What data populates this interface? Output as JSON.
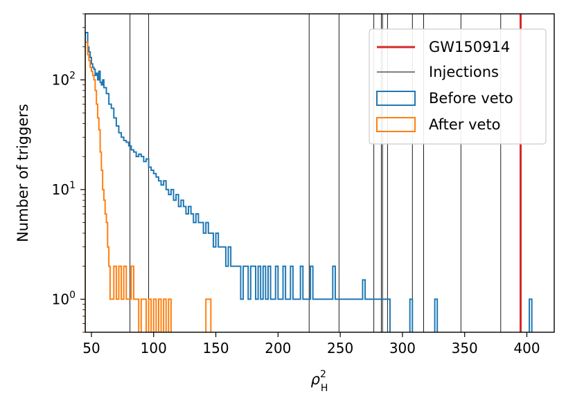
{
  "chart_data": {
    "type": "histogram",
    "title": "",
    "xlabel": "ρ²_H",
    "xlabel_base": "ρ",
    "xlabel_sup": "2",
    "xlabel_sub": "H",
    "ylabel": "Number of triggers",
    "xlim": [
      45,
      422
    ],
    "ylim": [
      0.5,
      400
    ],
    "yscale": "log",
    "grid": false,
    "x_ticks": [
      50,
      100,
      150,
      200,
      250,
      300,
      350,
      400
    ],
    "x_tick_labels": [
      "50",
      "100",
      "150",
      "200",
      "250",
      "300",
      "350",
      "400"
    ],
    "y_ticks": [
      {
        "value": 1,
        "base": "10",
        "exp": "0"
      },
      {
        "value": 10,
        "base": "10",
        "exp": "1"
      },
      {
        "value": 100,
        "base": "10",
        "exp": "2"
      }
    ],
    "gw_event": {
      "name": "GW150914",
      "x": 395,
      "color": "#d62728"
    },
    "injections": [
      81,
      96,
      225,
      249,
      277,
      283,
      284,
      288,
      308,
      317,
      347,
      379
    ],
    "injection_label": "Injections",
    "before_veto": {
      "name": "Before veto",
      "color": "#1f77b4",
      "points": [
        [
          45,
          270
        ],
        [
          47,
          200
        ],
        [
          48,
          180
        ],
        [
          49,
          160
        ],
        [
          50,
          140
        ],
        [
          51,
          130
        ],
        [
          52,
          125
        ],
        [
          53,
          110
        ],
        [
          54,
          115
        ],
        [
          55,
          100
        ],
        [
          56,
          120
        ],
        [
          57,
          95
        ],
        [
          58,
          90
        ],
        [
          59,
          100
        ],
        [
          60,
          85
        ],
        [
          62,
          75
        ],
        [
          64,
          60
        ],
        [
          66,
          55
        ],
        [
          68,
          45
        ],
        [
          70,
          38
        ],
        [
          72,
          33
        ],
        [
          74,
          30
        ],
        [
          76,
          28
        ],
        [
          78,
          27
        ],
        [
          80,
          25
        ],
        [
          82,
          23
        ],
        [
          84,
          22
        ],
        [
          86,
          20
        ],
        [
          88,
          21
        ],
        [
          90,
          20
        ],
        [
          92,
          18
        ],
        [
          94,
          19
        ],
        [
          96,
          16
        ],
        [
          98,
          15
        ],
        [
          100,
          14
        ],
        [
          102,
          13
        ],
        [
          104,
          12
        ],
        [
          106,
          11
        ],
        [
          108,
          12
        ],
        [
          110,
          10
        ],
        [
          112,
          9
        ],
        [
          114,
          10
        ],
        [
          116,
          8
        ],
        [
          118,
          9
        ],
        [
          120,
          7
        ],
        [
          122,
          8
        ],
        [
          124,
          7
        ],
        [
          126,
          6
        ],
        [
          128,
          7
        ],
        [
          130,
          6
        ],
        [
          132,
          5
        ],
        [
          134,
          6
        ],
        [
          136,
          5
        ],
        [
          138,
          5
        ],
        [
          140,
          4
        ],
        [
          142,
          5
        ],
        [
          144,
          4
        ],
        [
          146,
          4
        ],
        [
          148,
          3
        ],
        [
          150,
          4
        ],
        [
          152,
          3
        ],
        [
          154,
          3
        ],
        [
          156,
          3
        ],
        [
          158,
          2
        ],
        [
          160,
          3
        ],
        [
          162,
          2
        ],
        [
          164,
          2
        ],
        [
          166,
          2
        ],
        [
          168,
          2
        ],
        [
          170,
          1
        ],
        [
          172,
          2
        ],
        [
          174,
          2
        ],
        [
          176,
          1
        ],
        [
          178,
          2
        ],
        [
          180,
          2
        ],
        [
          182,
          1
        ],
        [
          184,
          2
        ],
        [
          186,
          1
        ],
        [
          188,
          2
        ],
        [
          190,
          1
        ],
        [
          192,
          2
        ],
        [
          194,
          1
        ],
        [
          196,
          1
        ],
        [
          198,
          2
        ],
        [
          200,
          1
        ],
        [
          202,
          1
        ],
        [
          204,
          2
        ],
        [
          206,
          1
        ],
        [
          208,
          1
        ],
        [
          210,
          2
        ],
        [
          212,
          1
        ],
        [
          214,
          1
        ],
        [
          216,
          1
        ],
        [
          218,
          2
        ],
        [
          220,
          1
        ],
        [
          222,
          1
        ],
        [
          224,
          1
        ],
        [
          226,
          2
        ],
        [
          228,
          1
        ],
        [
          230,
          1
        ],
        [
          232,
          1
        ],
        [
          234,
          1
        ],
        [
          236,
          1
        ],
        [
          238,
          1
        ],
        [
          240,
          1
        ],
        [
          242,
          1
        ],
        [
          244,
          2
        ],
        [
          246,
          1
        ],
        [
          248,
          1
        ],
        [
          250,
          1
        ],
        [
          252,
          1
        ],
        [
          254,
          1
        ],
        [
          256,
          1
        ],
        [
          258,
          1
        ],
        [
          260,
          1
        ],
        [
          262,
          1
        ],
        [
          264,
          1
        ],
        [
          266,
          1
        ],
        [
          268,
          1.5
        ],
        [
          270,
          1
        ],
        [
          272,
          1
        ],
        [
          274,
          1
        ],
        [
          276,
          1
        ],
        [
          278,
          1
        ],
        [
          280,
          1
        ],
        [
          282,
          1
        ],
        [
          284,
          1
        ],
        [
          286,
          1
        ],
        [
          288,
          1
        ],
        [
          306,
          1
        ],
        [
          326,
          1
        ],
        [
          402,
          1
        ]
      ]
    },
    "after_veto": {
      "name": "After veto",
      "color": "#ff7f0e",
      "points": [
        [
          45,
          220
        ],
        [
          47,
          170
        ],
        [
          48,
          150
        ],
        [
          49,
          130
        ],
        [
          50,
          120
        ],
        [
          51,
          110
        ],
        [
          52,
          100
        ],
        [
          53,
          80
        ],
        [
          54,
          60
        ],
        [
          55,
          45
        ],
        [
          56,
          35
        ],
        [
          57,
          22
        ],
        [
          58,
          15
        ],
        [
          59,
          10
        ],
        [
          60,
          8
        ],
        [
          61,
          6
        ],
        [
          62,
          5
        ],
        [
          63,
          3
        ],
        [
          64,
          2
        ],
        [
          65,
          1
        ],
        [
          66,
          1
        ],
        [
          68,
          2
        ],
        [
          70,
          1
        ],
        [
          72,
          2
        ],
        [
          74,
          1
        ],
        [
          76,
          2
        ],
        [
          78,
          1
        ],
        [
          80,
          1
        ],
        [
          82,
          2
        ],
        [
          84,
          1
        ],
        [
          86,
          1
        ],
        [
          90,
          1
        ],
        [
          92,
          1
        ],
        [
          96,
          1
        ],
        [
          100,
          1
        ],
        [
          104,
          1
        ],
        [
          108,
          1
        ],
        [
          112,
          1
        ],
        [
          142,
          1
        ],
        [
          144,
          1
        ]
      ]
    },
    "legend": {
      "placement": "top-right",
      "entries": [
        "GW150914",
        "Injections",
        "Before veto",
        "After veto"
      ]
    }
  }
}
